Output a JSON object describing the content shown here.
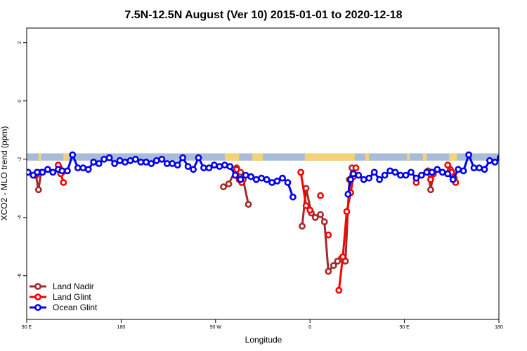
{
  "chart_data": {
    "type": "line",
    "title": "7.5N-12.5N August (Ver 10)   2015-01-01 to 2020-12-18",
    "xlabel": "Longitude",
    "ylabel": "XCO2 - MLO trend (ppm)",
    "xlim": [
      -90,
      270
    ],
    "ylim": [
      -7.5,
      2.5
    ],
    "x_ticks": [
      {
        "value": -90,
        "label": "90 E"
      },
      {
        "value": -18,
        "label": "180"
      },
      {
        "value": 54,
        "label": "90 W"
      },
      {
        "value": 126,
        "label": "0"
      },
      {
        "value": 198,
        "label": "90 E"
      },
      {
        "value": 270,
        "label": "180"
      }
    ],
    "y_ticks": [
      {
        "value": 2,
        "label": "2"
      },
      {
        "value": 0,
        "label": "0"
      },
      {
        "value": -2,
        "label": "-2"
      },
      {
        "value": -4,
        "label": "-4"
      },
      {
        "value": -6,
        "label": "-6"
      }
    ],
    "grid": false,
    "legend_position": "bottom-left",
    "map_band": {
      "ylim": [
        -2.05,
        -1.8
      ],
      "ocean_color": "#a7bcd9",
      "land_color": "#f5d27a",
      "land_ranges": [
        [
          -81,
          -79
        ],
        [
          -62,
          -58
        ],
        [
          61,
          72
        ],
        [
          82,
          90
        ],
        [
          122,
          160
        ],
        [
          168,
          171
        ],
        [
          200,
          202
        ],
        [
          212,
          215
        ],
        [
          232,
          238
        ]
      ]
    },
    "series": [
      {
        "name": "Land Nadir",
        "color": "#a52a2a",
        "segments": [
          [
            [
              -83,
              -2.55
            ],
            [
              -81,
              -3.05
            ],
            [
              -79,
              -2.45
            ]
          ],
          [
            [
              -65,
              -2.3
            ],
            [
              -63,
              -2.45
            ]
          ],
          [
            [
              60,
              -2.95
            ],
            [
              64,
              -2.85
            ],
            [
              70,
              -2.3
            ],
            [
              73,
              -2.45
            ],
            [
              75,
              -2.7
            ],
            [
              79,
              -3.55
            ]
          ],
          [
            [
              120,
              -4.3
            ],
            [
              123,
              -3.0
            ],
            [
              127,
              -3.85
            ],
            [
              130,
              -4.0
            ],
            [
              134,
              -3.9
            ],
            [
              137,
              -4.15
            ],
            [
              140,
              -5.85
            ],
            [
              144,
              -5.65
            ],
            [
              147,
              -5.5
            ],
            [
              150,
              -5.4
            ],
            [
              153,
              -5.5
            ],
            [
              156,
              -2.7
            ],
            [
              158,
              -2.3
            ]
          ],
          [
            [
              216,
              -2.4
            ],
            [
              218,
              -3.05
            ],
            [
              220,
              -2.5
            ]
          ],
          [
            [
              233,
              -2.35
            ],
            [
              236,
              -2.65
            ]
          ]
        ]
      },
      {
        "name": "Land Glint",
        "color": "#ff0000",
        "segments": [
          [
            [
              -84,
              -2.55
            ],
            [
              -82,
              -2.45
            ]
          ],
          [
            [
              -66,
              -2.2
            ],
            [
              -64,
              -2.5
            ],
            [
              -62,
              -2.8
            ]
          ],
          [
            [
              70,
              -2.35
            ],
            [
              72,
              -2.7
            ],
            [
              74,
              -2.8
            ]
          ],
          [
            [
              119,
              -2.45
            ],
            [
              123,
              -3.6
            ],
            [
              126,
              -3.75
            ]
          ],
          [
            [
              134,
              -3.25
            ]
          ],
          [
            [
              140,
              -4.6
            ]
          ],
          [
            [
              148,
              -6.5
            ],
            [
              151,
              -5.35
            ],
            [
              154,
              -3.8
            ],
            [
              157,
              -3.15
            ],
            [
              159,
              -2.6
            ],
            [
              161,
              -2.3
            ]
          ],
          [
            [
              207,
              -2.8
            ]
          ],
          [
            [
              218,
              -2.7
            ],
            [
              220,
              -2.5
            ]
          ],
          [
            [
              231,
              -2.2
            ],
            [
              234,
              -2.45
            ],
            [
              237,
              -2.8
            ]
          ]
        ]
      },
      {
        "name": "Ocean Glint",
        "color": "#0000ee",
        "segments": [
          [
            [
              -89,
              -2.45
            ],
            [
              -85,
              -2.55
            ],
            [
              -82,
              -2.45
            ],
            [
              -78,
              -2.45
            ],
            [
              -74,
              -2.35
            ],
            [
              -70,
              -2.45
            ],
            [
              -66,
              -2.35
            ],
            [
              -63,
              -2.4
            ],
            [
              -59,
              -2.4
            ],
            [
              -55,
              -1.85
            ],
            [
              -51,
              -2.3
            ],
            [
              -47,
              -2.3
            ],
            [
              -43,
              -2.35
            ],
            [
              -39,
              -2.1
            ],
            [
              -35,
              -2.15
            ],
            [
              -31,
              -2.0
            ],
            [
              -27,
              -1.95
            ],
            [
              -23,
              -2.15
            ],
            [
              -19,
              -2.05
            ],
            [
              -15,
              -2.1
            ],
            [
              -11,
              -2.05
            ],
            [
              -7,
              -2.0
            ],
            [
              -3,
              -2.1
            ],
            [
              1,
              -2.1
            ],
            [
              5,
              -2.15
            ],
            [
              9,
              -2.05
            ],
            [
              13,
              -2.0
            ],
            [
              17,
              -2.15
            ],
            [
              21,
              -2.15
            ],
            [
              25,
              -2.2
            ],
            [
              29,
              -1.95
            ],
            [
              33,
              -2.25
            ],
            [
              37,
              -2.35
            ],
            [
              41,
              -1.95
            ],
            [
              45,
              -2.3
            ],
            [
              49,
              -2.3
            ],
            [
              53,
              -2.2
            ],
            [
              57,
              -2.25
            ],
            [
              61,
              -2.2
            ],
            [
              65,
              -2.25
            ],
            [
              69,
              -2.55
            ],
            [
              73,
              -2.7
            ],
            [
              77,
              -2.55
            ],
            [
              81,
              -2.6
            ],
            [
              85,
              -2.7
            ],
            [
              89,
              -2.65
            ],
            [
              93,
              -2.7
            ],
            [
              97,
              -2.8
            ],
            [
              101,
              -2.75
            ],
            [
              105,
              -2.65
            ],
            [
              109,
              -2.8
            ],
            [
              113,
              -3.3
            ]
          ],
          [
            [
              155,
              -3.2
            ],
            [
              157,
              -2.7
            ],
            [
              159,
              -2.5
            ],
            [
              163,
              -2.55
            ],
            [
              167,
              -2.7
            ],
            [
              171,
              -2.65
            ],
            [
              175,
              -2.45
            ],
            [
              179,
              -2.7
            ],
            [
              183,
              -2.55
            ],
            [
              187,
              -2.4
            ],
            [
              191,
              -2.45
            ],
            [
              195,
              -2.55
            ],
            [
              199,
              -2.55
            ],
            [
              203,
              -2.45
            ],
            [
              207,
              -2.65
            ],
            [
              211,
              -2.55
            ],
            [
              215,
              -2.45
            ],
            [
              219,
              -2.45
            ],
            [
              223,
              -2.35
            ],
            [
              227,
              -2.45
            ],
            [
              231,
              -2.5
            ],
            [
              235,
              -2.7
            ],
            [
              239,
              -2.35
            ],
            [
              243,
              -2.4
            ],
            [
              247,
              -1.85
            ],
            [
              251,
              -2.3
            ],
            [
              255,
              -2.3
            ],
            [
              259,
              -2.35
            ],
            [
              263,
              -2.05
            ],
            [
              267,
              -2.1
            ],
            [
              271,
              -1.95
            ],
            [
              275,
              -1.95
            ],
            [
              279,
              -2.15
            ]
          ]
        ]
      }
    ]
  }
}
